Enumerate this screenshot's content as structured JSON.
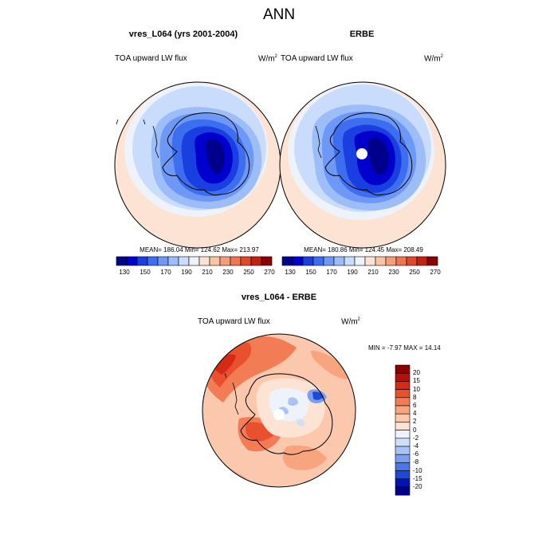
{
  "main_title": "ANN",
  "panels": [
    {
      "title": "vres_L064 (yrs 2001-2004)",
      "variable": "TOA upward LW flux",
      "units_base": "W/m",
      "units_exp": "2",
      "stats": "MEAN= 186.04  Min= 124.62  Max= 213.97",
      "colorbar_ticks": [
        "130",
        "150",
        "170",
        "190",
        "210",
        "230",
        "250",
        "270"
      ]
    },
    {
      "title": "ERBE",
      "variable": "TOA upward LW flux",
      "units_base": "W/m",
      "units_exp": "2",
      "stats": "MEAN= 180.86  Min= 124.45  Max= 208.49",
      "colorbar_ticks": [
        "130",
        "150",
        "170",
        "190",
        "210",
        "230",
        "250",
        "270"
      ]
    },
    {
      "title": "vres_L064 - ERBE",
      "variable": "TOA upward LW flux",
      "units_base": "W/m",
      "units_exp": "2",
      "stats": "MIN =  -7.97 MAX =  14.14",
      "colorbar_ticks": [
        "20",
        "15",
        "10",
        "8",
        "6",
        "4",
        "2",
        "0",
        "-2",
        "-4",
        "-6",
        "-8",
        "-10",
        "-15",
        "-20"
      ]
    }
  ],
  "colors": {
    "abs_scale": [
      "#00008b",
      "#0000cd",
      "#1a3fe0",
      "#3d6ef0",
      "#6d98f7",
      "#9dbdf9",
      "#c9dcfb",
      "#eef3fb",
      "#fde3d3",
      "#f9c3a6",
      "#f59e7a",
      "#ee7650",
      "#e0482c",
      "#c22114",
      "#8b0000"
    ],
    "diff_scale": [
      "#8b0000",
      "#b5110c",
      "#d62a16",
      "#e8502e",
      "#f27d55",
      "#f8a47f",
      "#fbc7ad",
      "#fde3d3",
      "#eef3fb",
      "#cfdff9",
      "#a8c3f5",
      "#7a9ff0",
      "#4c76e6",
      "#2048d6",
      "#0013b3",
      "#00008b"
    ]
  }
}
